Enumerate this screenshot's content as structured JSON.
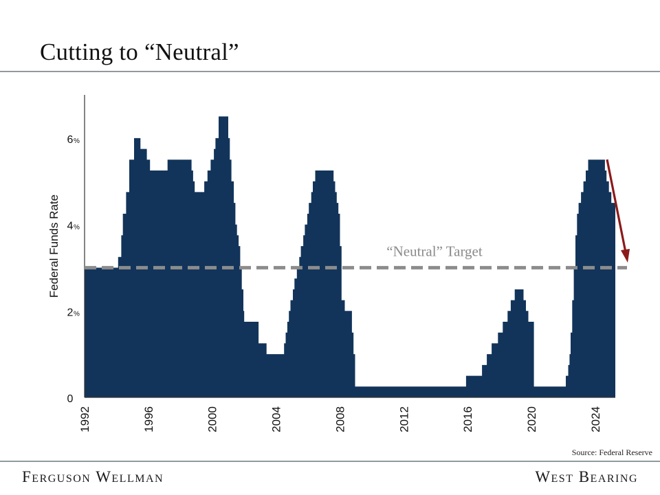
{
  "title": "Cutting to “Neutral”",
  "footer": {
    "left": "Ferguson Wellman",
    "right": "West Bearing"
  },
  "colors": {
    "fill": "#12345a",
    "neutral_line": "#8c8c8c",
    "arrow": "#8b1a1a",
    "axis": "#333333"
  },
  "chart_data": {
    "type": "area",
    "ylabel": "Federal Funds Rate",
    "xlabel": "",
    "xlim": [
      1992,
      2025.25
    ],
    "ylim": [
      0,
      7
    ],
    "x_ticks": [
      "1992",
      "1996",
      "2000",
      "2004",
      "2008",
      "2012",
      "2016",
      "2020",
      "2024"
    ],
    "y_ticks": [
      {
        "value": 6,
        "label": "6",
        "unit": "%"
      },
      {
        "value": 4,
        "label": "4",
        "unit": "%"
      },
      {
        "value": 2,
        "label": "2",
        "unit": "%"
      },
      {
        "value": 0,
        "label": "0",
        "unit": ""
      }
    ],
    "series": [
      {
        "values": [
          [
            1992.0,
            3.0
          ],
          [
            1993.0,
            3.0
          ],
          [
            1994.0,
            3.0
          ],
          [
            1994.1,
            3.25
          ],
          [
            1994.3,
            3.75
          ],
          [
            1994.4,
            4.25
          ],
          [
            1994.6,
            4.75
          ],
          [
            1994.8,
            5.5
          ],
          [
            1995.1,
            6.0
          ],
          [
            1995.5,
            5.75
          ],
          [
            1995.9,
            5.5
          ],
          [
            1996.1,
            5.25
          ],
          [
            1997.2,
            5.5
          ],
          [
            1998.7,
            5.25
          ],
          [
            1998.8,
            5.0
          ],
          [
            1998.9,
            4.75
          ],
          [
            1999.5,
            5.0
          ],
          [
            1999.7,
            5.25
          ],
          [
            1999.9,
            5.5
          ],
          [
            2000.1,
            5.75
          ],
          [
            2000.2,
            6.0
          ],
          [
            2000.4,
            6.5
          ],
          [
            2000.9,
            6.5
          ],
          [
            2001.0,
            6.0
          ],
          [
            2001.1,
            5.5
          ],
          [
            2001.2,
            5.0
          ],
          [
            2001.35,
            4.5
          ],
          [
            2001.45,
            4.0
          ],
          [
            2001.55,
            3.75
          ],
          [
            2001.65,
            3.5
          ],
          [
            2001.75,
            3.0
          ],
          [
            2001.85,
            2.5
          ],
          [
            2001.95,
            2.0
          ],
          [
            2002.0,
            1.75
          ],
          [
            2002.9,
            1.25
          ],
          [
            2003.4,
            1.0
          ],
          [
            2004.5,
            1.25
          ],
          [
            2004.6,
            1.5
          ],
          [
            2004.7,
            1.75
          ],
          [
            2004.8,
            2.0
          ],
          [
            2004.9,
            2.25
          ],
          [
            2005.05,
            2.5
          ],
          [
            2005.15,
            2.75
          ],
          [
            2005.3,
            3.0
          ],
          [
            2005.45,
            3.25
          ],
          [
            2005.55,
            3.5
          ],
          [
            2005.7,
            3.75
          ],
          [
            2005.8,
            4.0
          ],
          [
            2005.95,
            4.25
          ],
          [
            2006.05,
            4.5
          ],
          [
            2006.2,
            4.75
          ],
          [
            2006.3,
            5.0
          ],
          [
            2006.45,
            5.25
          ],
          [
            2007.6,
            5.0
          ],
          [
            2007.7,
            4.75
          ],
          [
            2007.8,
            4.5
          ],
          [
            2007.9,
            4.25
          ],
          [
            2008.0,
            3.5
          ],
          [
            2008.1,
            2.25
          ],
          [
            2008.3,
            2.0
          ],
          [
            2008.75,
            1.5
          ],
          [
            2008.85,
            1.0
          ],
          [
            2008.95,
            0.25
          ],
          [
            2015.9,
            0.5
          ],
          [
            2016.9,
            0.75
          ],
          [
            2017.2,
            1.0
          ],
          [
            2017.5,
            1.25
          ],
          [
            2017.9,
            1.5
          ],
          [
            2018.2,
            1.75
          ],
          [
            2018.5,
            2.0
          ],
          [
            2018.7,
            2.25
          ],
          [
            2018.95,
            2.5
          ],
          [
            2019.5,
            2.25
          ],
          [
            2019.65,
            2.0
          ],
          [
            2019.8,
            1.75
          ],
          [
            2020.15,
            0.25
          ],
          [
            2022.15,
            0.5
          ],
          [
            2022.3,
            0.75
          ],
          [
            2022.38,
            1.0
          ],
          [
            2022.45,
            1.5
          ],
          [
            2022.55,
            2.25
          ],
          [
            2022.65,
            3.0
          ],
          [
            2022.75,
            3.75
          ],
          [
            2022.85,
            4.25
          ],
          [
            2022.95,
            4.5
          ],
          [
            2023.1,
            4.75
          ],
          [
            2023.25,
            5.0
          ],
          [
            2023.4,
            5.25
          ],
          [
            2023.55,
            5.5
          ],
          [
            2024.6,
            5.25
          ],
          [
            2024.7,
            5.0
          ],
          [
            2024.85,
            4.75
          ],
          [
            2025.0,
            4.5
          ],
          [
            2025.25,
            4.5
          ]
        ]
      }
    ],
    "neutral": {
      "value": 3.0,
      "label": "“Neutral” Target"
    },
    "arrow": {
      "from": [
        2025.9,
        5.5
      ],
      "to": [
        2026.6,
        3.1
      ]
    },
    "source": "Source: Federal Reserve",
    "grid": false
  }
}
